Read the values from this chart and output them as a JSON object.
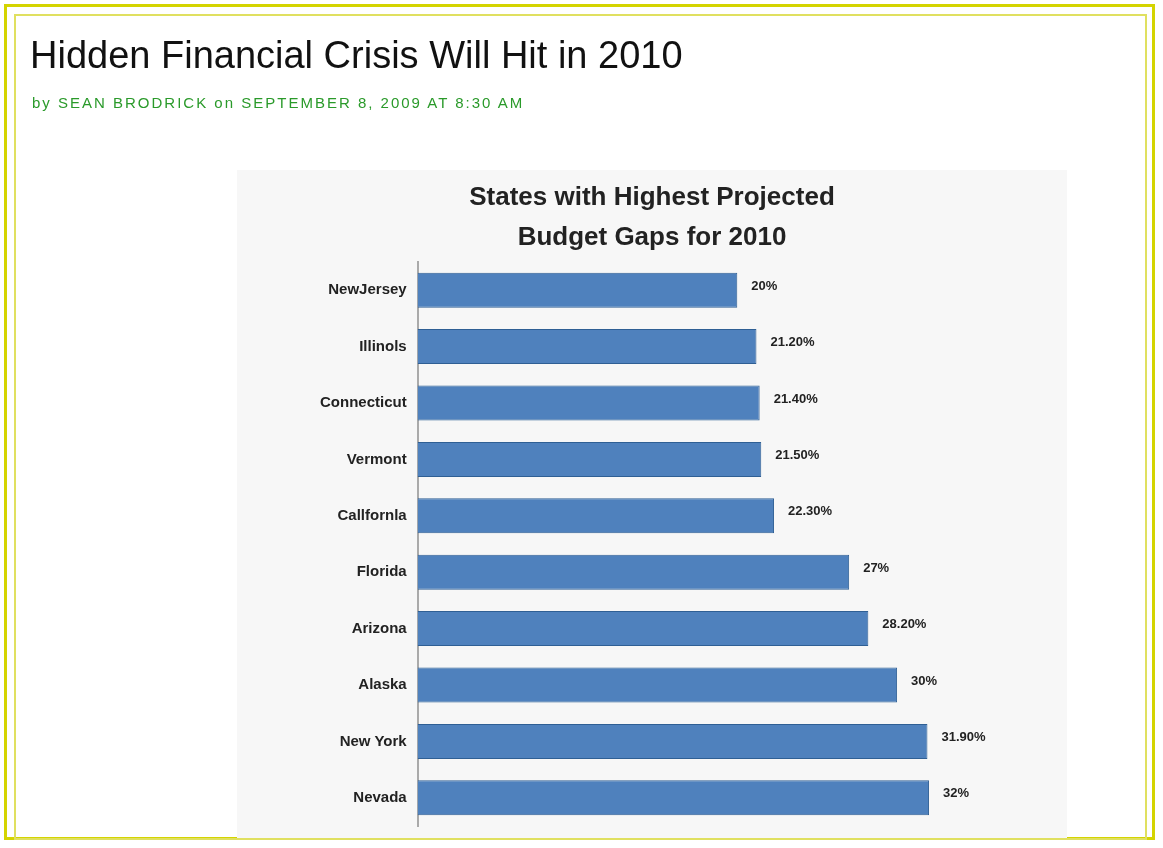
{
  "chart_data": {
    "type": "bar",
    "orientation": "horizontal",
    "title": "States with Highest Projected Budget Gaps for 2010",
    "annotations": [
      "Hidden Financial Crisis Will Hit in 2010",
      "by SEAN BRODRICK on SEPTEMBER 8, 2009 AT 8:30 AM"
    ],
    "categories": [
      "NewJersey",
      "Illinols",
      "Connecticut",
      "Vermont",
      "Callfornla",
      "Florida",
      "Arizona",
      "Alaska",
      "New York",
      "Nevada"
    ],
    "values": [
      20,
      21.2,
      21.4,
      21.5,
      22.3,
      27,
      28.2,
      30,
      31.9,
      32
    ],
    "value_labels": [
      "20%",
      "21.20%",
      "21.40%",
      "21.50%",
      "22.30%",
      "27%",
      "28.20%",
      "30%",
      "31.90%",
      "32%"
    ],
    "color": "#4f81bd",
    "grid": false,
    "legend": false,
    "tick_labels": "y"
  }
}
